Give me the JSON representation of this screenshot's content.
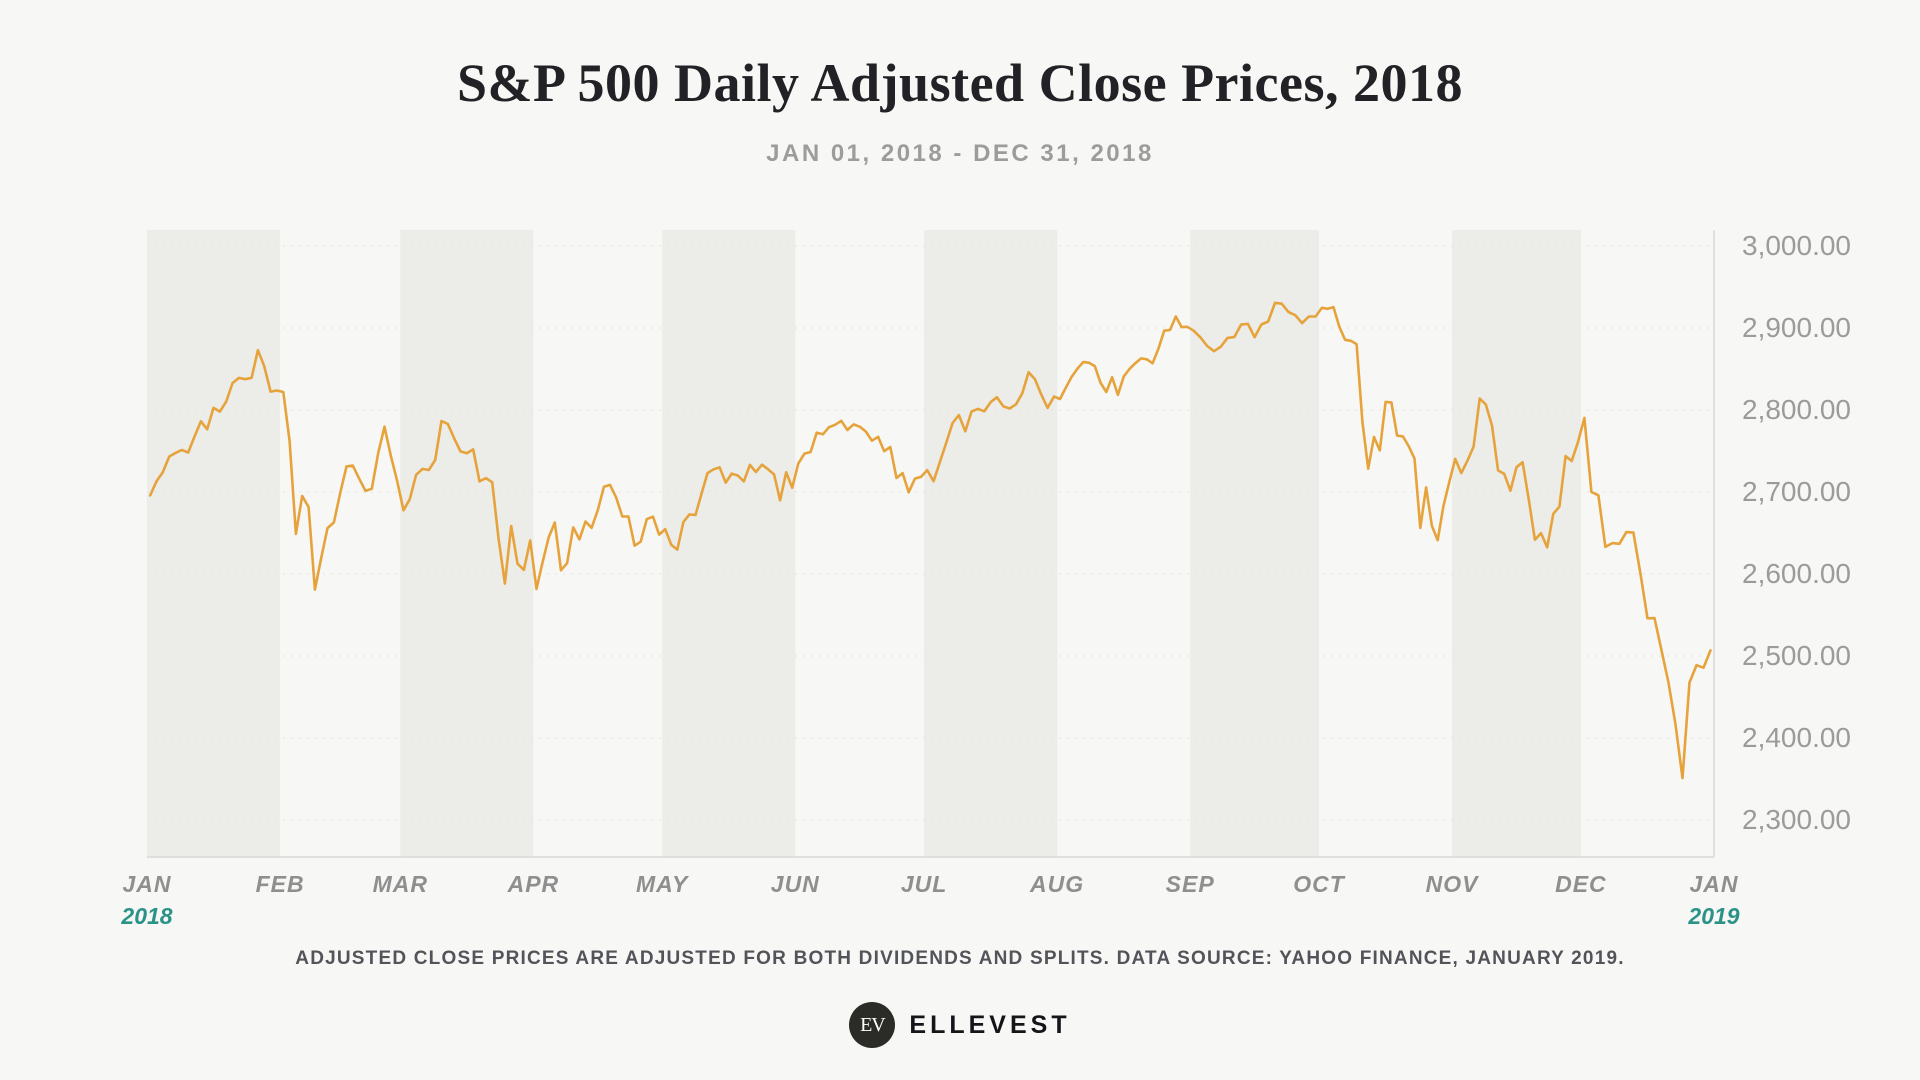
{
  "page": {
    "title": "S&P 500 Daily Adjusted Close Prices, 2018",
    "subtitle": "JAN 01, 2018 - DEC 31, 2018",
    "footnote": "ADJUSTED CLOSE PRICES ARE ADJUSTED FOR BOTH DIVIDENDS AND SPLITS. DATA SOURCE: YAHOO FINANCE, JANUARY 2019.",
    "logo": {
      "monogram": "EV",
      "brand": "ELLEVEST"
    }
  },
  "chart_data": {
    "type": "line",
    "title": "S&P 500 Daily Adjusted Close Prices, 2018",
    "subtitle": "JAN 01, 2018 - DEC 31, 2018",
    "xlabel": "",
    "ylabel": "",
    "ylim": [
      2300,
      3000
    ],
    "grid": "dotted-horizontal",
    "legend": "none",
    "y_ticks": [
      {
        "v": 3000,
        "label": "3,000.00"
      },
      {
        "v": 2900,
        "label": "2,900.00"
      },
      {
        "v": 2800,
        "label": "2,800.00"
      },
      {
        "v": 2700,
        "label": "2,700.00"
      },
      {
        "v": 2600,
        "label": "2,600.00"
      },
      {
        "v": 2500,
        "label": "2,500.00"
      },
      {
        "v": 2400,
        "label": "2,400.00"
      },
      {
        "v": 2300,
        "label": "2,300.00"
      }
    ],
    "x_labels": [
      {
        "label": "JAN",
        "year": "2018"
      },
      {
        "label": "FEB"
      },
      {
        "label": "MAR"
      },
      {
        "label": "APR"
      },
      {
        "label": "MAY"
      },
      {
        "label": "JUN"
      },
      {
        "label": "JUL"
      },
      {
        "label": "AUG"
      },
      {
        "label": "SEP"
      },
      {
        "label": "OCT"
      },
      {
        "label": "NOV"
      },
      {
        "label": "DEC"
      },
      {
        "label": "JAN",
        "year": "2019"
      }
    ],
    "month_days": [
      31,
      28,
      31,
      30,
      31,
      30,
      31,
      31,
      30,
      31,
      30,
      31
    ],
    "shaded_month_indices": [
      0,
      2,
      4,
      6,
      8,
      10
    ],
    "colors": {
      "line": "#E6A33C",
      "band": "#ECECE9",
      "grid": "#E3E3DF",
      "axis": "#D8D8D4",
      "tick_text": "#9B9B9B",
      "month_text": "#8F8F8F",
      "year_text": "#2A9287",
      "background": "#F7F7F5"
    },
    "series": [
      {
        "name": "S&P 500 Daily Adjusted Close",
        "values_by_month": [
          [
            2695.81,
            2713.06,
            2723.99,
            2743.15,
            2747.71,
            2751.29,
            2748.23,
            2767.56,
            2786.24,
            2776.42,
            2802.56,
            2798.03,
            2810.3,
            2832.97,
            2839.13,
            2837.54,
            2839.25,
            2872.87,
            2853.53,
            2822.43,
            2823.81
          ],
          [
            2821.98,
            2762.13,
            2648.94,
            2695.14,
            2681.66,
            2581.0,
            2619.55,
            2656.0,
            2662.94,
            2698.63,
            2731.2,
            2732.22,
            2716.26,
            2701.33,
            2703.96,
            2747.3,
            2779.6,
            2744.28,
            2713.83
          ],
          [
            2677.67,
            2691.25,
            2720.94,
            2728.12,
            2726.8,
            2738.97,
            2786.57,
            2783.02,
            2765.31,
            2749.48,
            2747.33,
            2752.01,
            2712.92,
            2716.94,
            2711.93,
            2643.69,
            2588.26,
            2658.55,
            2612.62,
            2605.0,
            2640.87
          ],
          [
            2581.88,
            2614.45,
            2644.69,
            2662.84,
            2604.47,
            2613.16,
            2656.87,
            2642.19,
            2663.99,
            2656.3,
            2677.84,
            2706.39,
            2708.64,
            2693.13,
            2670.14,
            2670.29,
            2634.56,
            2639.4,
            2666.94,
            2669.91,
            2648.05
          ],
          [
            2654.8,
            2635.67,
            2629.73,
            2663.42,
            2672.63,
            2671.92,
            2697.79,
            2723.07,
            2727.72,
            2730.13,
            2711.45,
            2722.46,
            2720.13,
            2712.97,
            2733.01,
            2724.44,
            2733.29,
            2727.76,
            2721.33,
            2689.86,
            2724.01,
            2705.27
          ],
          [
            2734.62,
            2746.87,
            2748.8,
            2772.35,
            2770.37,
            2779.03,
            2782.0,
            2786.85,
            2775.63,
            2782.49,
            2779.66,
            2773.75,
            2762.57,
            2767.32,
            2749.76,
            2754.88,
            2717.07,
            2723.06,
            2699.63,
            2716.31,
            2718.37
          ],
          [
            2726.71,
            2713.22,
            2736.61,
            2759.82,
            2784.17,
            2793.84,
            2774.02,
            2798.29,
            2801.31,
            2798.43,
            2809.55,
            2815.62,
            2804.49,
            2801.83,
            2806.98,
            2820.4,
            2846.07,
            2837.44,
            2818.82,
            2802.6,
            2816.29
          ],
          [
            2813.36,
            2827.22,
            2840.35,
            2850.4,
            2858.45,
            2857.7,
            2853.58,
            2833.28,
            2821.93,
            2839.96,
            2818.37,
            2840.69,
            2850.13,
            2857.05,
            2862.96,
            2861.82,
            2856.98,
            2874.69,
            2896.74,
            2897.52,
            2914.04,
            2901.13,
            2901.52
          ],
          [
            2896.72,
            2888.6,
            2878.05,
            2871.68,
            2877.13,
            2887.89,
            2888.92,
            2904.18,
            2904.98,
            2888.8,
            2904.31,
            2907.95,
            2930.75,
            2929.67,
            2919.37,
            2915.56,
            2905.97,
            2914.0,
            2913.98
          ],
          [
            2924.59,
            2923.43,
            2925.51,
            2901.61,
            2885.57,
            2884.43,
            2880.34,
            2785.68,
            2728.37,
            2767.13,
            2750.79,
            2809.92,
            2809.21,
            2768.78,
            2767.78,
            2755.88,
            2740.69,
            2656.1,
            2705.57,
            2658.69,
            2641.25,
            2682.63,
            2711.74
          ],
          [
            2740.37,
            2723.06,
            2738.31,
            2755.45,
            2813.89,
            2806.83,
            2781.01,
            2726.22,
            2722.18,
            2701.58,
            2730.2,
            2736.27,
            2690.73,
            2641.89,
            2649.93,
            2632.56,
            2673.45,
            2682.17,
            2743.79,
            2737.76,
            2760.17
          ],
          [
            2790.37,
            2700.06,
            2695.95,
            2633.08,
            2637.72,
            2636.78,
            2651.07,
            2650.54,
            2599.95,
            2545.94,
            2546.16,
            2506.96,
            2467.42,
            2416.62,
            2351.1,
            2467.7,
            2488.83,
            2485.74,
            2506.85
          ]
        ]
      }
    ]
  }
}
